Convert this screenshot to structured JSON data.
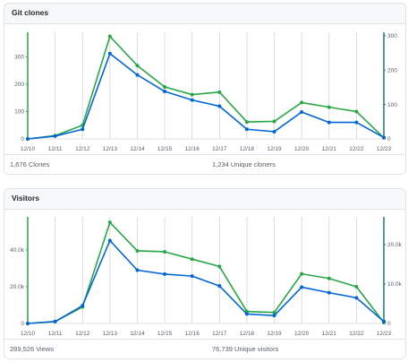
{
  "colors": {
    "primary": "#0366d6",
    "secondary": "#28a745",
    "grid": "#d1d5da",
    "axis_left": "#28a745",
    "axis_right": "#1b7c83"
  },
  "chart_data": [
    {
      "type": "line",
      "title": "Git clones",
      "categories": [
        "12/10",
        "12/11",
        "12/12",
        "12/13",
        "12/14",
        "12/15",
        "12/16",
        "12/17",
        "12/18",
        "12/19",
        "12/20",
        "12/21",
        "12/22",
        "12/23"
      ],
      "series": [
        {
          "values": [
            0,
            12,
            50,
            375,
            268,
            190,
            162,
            171,
            62,
            64,
            133,
            116,
            100,
            4
          ],
          "axis": "left"
        },
        {
          "values": [
            0,
            8,
            28,
            248,
            186,
            138,
            113,
            95,
            28,
            21,
            78,
            48,
            48,
            4
          ],
          "axis": "right"
        }
      ],
      "y_left": {
        "ticks": [
          0,
          100,
          200,
          300
        ],
        "tick_labels": [
          "0",
          "100",
          "200",
          "300"
        ],
        "ylim": [
          0,
          390
        ]
      },
      "y_right": {
        "ticks": [
          0,
          100,
          200,
          300
        ],
        "tick_labels": [
          "0",
          "100",
          "200",
          "300"
        ],
        "ylim": [
          0,
          310
        ]
      },
      "grid": true,
      "legend": "none",
      "stats": {
        "left": "1,676 Clones",
        "right": "1,234 Unique cloners"
      }
    },
    {
      "type": "line",
      "title": "Visitors",
      "categories": [
        "12/10",
        "12/11",
        "12/12",
        "12/13",
        "12/14",
        "12/15",
        "12/16",
        "12/17",
        "12/18",
        "12/19",
        "12/20",
        "12/21",
        "12/22",
        "12/23"
      ],
      "series": [
        {
          "values": [
            0,
            1000,
            9000,
            55000,
            39500,
            39000,
            35000,
            31000,
            6500,
            6000,
            27000,
            24500,
            20000,
            500
          ],
          "axis": "left"
        },
        {
          "values": [
            0,
            500,
            4500,
            21000,
            13500,
            12500,
            12000,
            9500,
            2400,
            2000,
            9200,
            7800,
            6500,
            500
          ],
          "axis": "right"
        }
      ],
      "y_left": {
        "ticks": [
          0,
          20000,
          40000
        ],
        "tick_labels": [
          "0",
          "20.0k",
          "40.0k"
        ],
        "ylim": [
          0,
          58000
        ]
      },
      "y_right": {
        "ticks": [
          0,
          10000,
          20000
        ],
        "tick_labels": [
          "0",
          "10.0k",
          "20.0k"
        ],
        "ylim": [
          0,
          27000
        ]
      },
      "grid": true,
      "legend": "none",
      "stats": {
        "left": "289,526 Views",
        "right": "76,739 Unique visitors"
      }
    }
  ]
}
